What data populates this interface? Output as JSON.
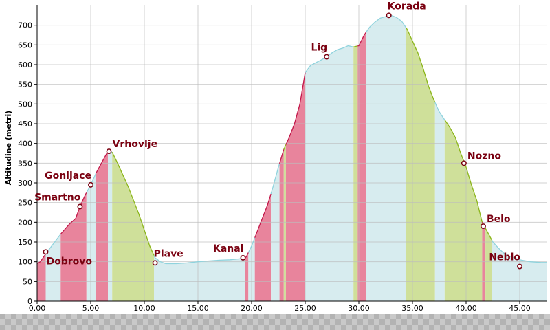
{
  "chart_data": {
    "type": "area",
    "xlabel": "",
    "ylabel": "Altitudine (metri)",
    "xlim": [
      0,
      47.5
    ],
    "ylim": [
      0,
      750
    ],
    "x_ticks": [
      "0.00",
      "5.00",
      "10.00",
      "15.00",
      "20.00",
      "25.00",
      "30.00",
      "35.00",
      "40.00",
      "45.00"
    ],
    "y_ticks": [
      "0",
      "50",
      "100",
      "150",
      "200",
      "250",
      "300",
      "350",
      "400",
      "450",
      "500",
      "550",
      "600",
      "650",
      "700"
    ],
    "grid": true,
    "colors": {
      "climb": "#e8849c",
      "descent": "#cfe09a",
      "flat": "#d7ecef",
      "line": "#8fd3dd"
    },
    "profile": [
      [
        0,
        95
      ],
      [
        0.3,
        100
      ],
      [
        0.8,
        120
      ],
      [
        1.5,
        145
      ],
      [
        2.2,
        170
      ],
      [
        3.0,
        195
      ],
      [
        3.6,
        210
      ],
      [
        4.0,
        240
      ],
      [
        4.5,
        270
      ],
      [
        5.0,
        295
      ],
      [
        5.5,
        325
      ],
      [
        6.0,
        350
      ],
      [
        6.5,
        375
      ],
      [
        7.0,
        378
      ],
      [
        7.5,
        350
      ],
      [
        8.0,
        320
      ],
      [
        8.5,
        290
      ],
      [
        9.0,
        255
      ],
      [
        9.5,
        220
      ],
      [
        10.0,
        180
      ],
      [
        10.5,
        140
      ],
      [
        11.0,
        110
      ],
      [
        11.5,
        100
      ],
      [
        12.0,
        95
      ],
      [
        13.0,
        95
      ],
      [
        14.0,
        97
      ],
      [
        15.0,
        100
      ],
      [
        16.0,
        102
      ],
      [
        17.0,
        104
      ],
      [
        18.0,
        105
      ],
      [
        19.0,
        108
      ],
      [
        19.5,
        112
      ],
      [
        20.0,
        140
      ],
      [
        20.5,
        175
      ],
      [
        21.0,
        210
      ],
      [
        21.5,
        245
      ],
      [
        22.0,
        290
      ],
      [
        22.5,
        340
      ],
      [
        23.0,
        385
      ],
      [
        23.5,
        415
      ],
      [
        24.0,
        450
      ],
      [
        24.5,
        500
      ],
      [
        25.0,
        580
      ],
      [
        25.5,
        598
      ],
      [
        26.0,
        605
      ],
      [
        26.5,
        612
      ],
      [
        27.0,
        620
      ],
      [
        27.5,
        630
      ],
      [
        28.0,
        638
      ],
      [
        28.5,
        642
      ],
      [
        29.0,
        648
      ],
      [
        29.5,
        645
      ],
      [
        30.0,
        648
      ],
      [
        30.5,
        675
      ],
      [
        31.0,
        695
      ],
      [
        31.5,
        708
      ],
      [
        32.0,
        718
      ],
      [
        32.5,
        722
      ],
      [
        33.0,
        725
      ],
      [
        33.5,
        720
      ],
      [
        34.0,
        710
      ],
      [
        34.5,
        690
      ],
      [
        35.0,
        660
      ],
      [
        35.5,
        630
      ],
      [
        36.0,
        590
      ],
      [
        36.5,
        545
      ],
      [
        37.0,
        510
      ],
      [
        37.5,
        480
      ],
      [
        38.0,
        460
      ],
      [
        38.5,
        440
      ],
      [
        39.0,
        415
      ],
      [
        39.5,
        375
      ],
      [
        40.0,
        340
      ],
      [
        40.5,
        295
      ],
      [
        41.0,
        255
      ],
      [
        41.5,
        200
      ],
      [
        42.0,
        175
      ],
      [
        42.5,
        150
      ],
      [
        43.0,
        135
      ],
      [
        43.5,
        122
      ],
      [
        44.0,
        115
      ],
      [
        45.0,
        105
      ],
      [
        46.0,
        100
      ],
      [
        47.0,
        98
      ],
      [
        47.5,
        98
      ]
    ],
    "bands": [
      {
        "from": 0,
        "to": 0.8,
        "kind": "climb"
      },
      {
        "from": 0.8,
        "to": 2.2,
        "kind": "flat"
      },
      {
        "from": 2.2,
        "to": 4.6,
        "kind": "climb"
      },
      {
        "from": 4.6,
        "to": 5.5,
        "kind": "flat"
      },
      {
        "from": 5.5,
        "to": 6.6,
        "kind": "climb"
      },
      {
        "from": 6.6,
        "to": 7.0,
        "kind": "flat"
      },
      {
        "from": 7.0,
        "to": 10.9,
        "kind": "descent"
      },
      {
        "from": 10.9,
        "to": 19.4,
        "kind": "flat"
      },
      {
        "from": 19.4,
        "to": 19.7,
        "kind": "climb"
      },
      {
        "from": 19.7,
        "to": 20.3,
        "kind": "flat"
      },
      {
        "from": 20.3,
        "to": 21.8,
        "kind": "climb"
      },
      {
        "from": 21.8,
        "to": 22.6,
        "kind": "flat"
      },
      {
        "from": 22.6,
        "to": 23.0,
        "kind": "climb"
      },
      {
        "from": 23.0,
        "to": 23.2,
        "kind": "descent"
      },
      {
        "from": 23.2,
        "to": 25.0,
        "kind": "climb"
      },
      {
        "from": 25.0,
        "to": 29.5,
        "kind": "flat"
      },
      {
        "from": 29.5,
        "to": 29.9,
        "kind": "descent"
      },
      {
        "from": 29.9,
        "to": 30.7,
        "kind": "climb"
      },
      {
        "from": 30.7,
        "to": 34.4,
        "kind": "flat"
      },
      {
        "from": 34.4,
        "to": 37.1,
        "kind": "descent"
      },
      {
        "from": 37.1,
        "to": 38.0,
        "kind": "flat"
      },
      {
        "from": 38.0,
        "to": 41.5,
        "kind": "descent"
      },
      {
        "from": 41.5,
        "to": 41.8,
        "kind": "climb"
      },
      {
        "from": 41.8,
        "to": 42.4,
        "kind": "descent"
      },
      {
        "from": 42.4,
        "to": 47.5,
        "kind": "flat"
      }
    ],
    "waypoints": [
      {
        "name": "Dobrovo",
        "x": 0.8,
        "y": 125,
        "label_pos": "below-right"
      },
      {
        "name": "Smartno",
        "x": 4.0,
        "y": 240,
        "label_pos": "above-left"
      },
      {
        "name": "Gonijace",
        "x": 5.0,
        "y": 295,
        "label_pos": "above-left"
      },
      {
        "name": "Vrhovlje",
        "x": 6.7,
        "y": 380,
        "label_pos": "right"
      },
      {
        "name": "Plave",
        "x": 11.0,
        "y": 97,
        "label_pos": "above-right"
      },
      {
        "name": "Kanal",
        "x": 19.2,
        "y": 110,
        "label_pos": "above-left"
      },
      {
        "name": "Lig",
        "x": 27.0,
        "y": 620,
        "label_pos": "above-left"
      },
      {
        "name": "Korada",
        "x": 32.8,
        "y": 725,
        "label_pos": "above-right"
      },
      {
        "name": "Nozno",
        "x": 39.8,
        "y": 350,
        "label_pos": "right"
      },
      {
        "name": "Belo",
        "x": 41.6,
        "y": 190,
        "label_pos": "right"
      },
      {
        "name": "Neblo",
        "x": 45.0,
        "y": 88,
        "label_pos": "above-left"
      }
    ]
  }
}
